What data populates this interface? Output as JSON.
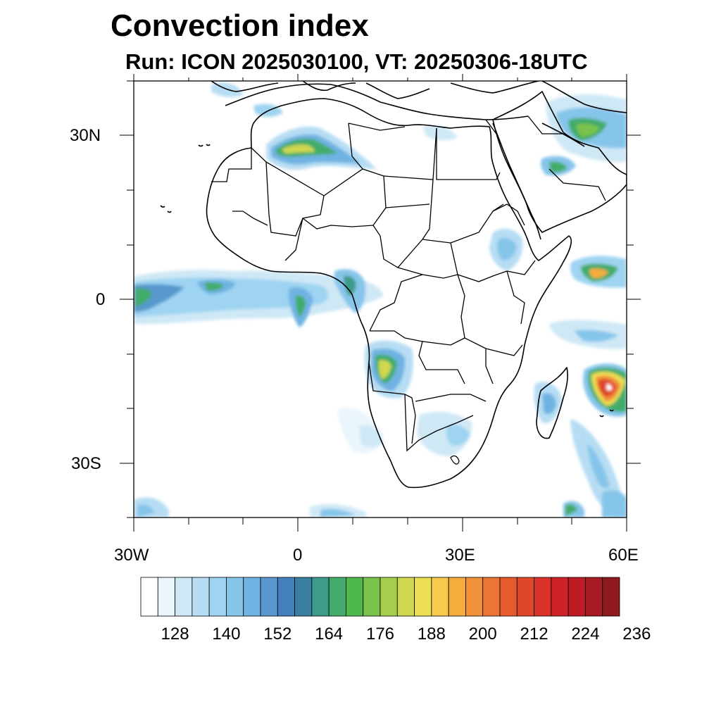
{
  "title": "Convection index",
  "subtitle": "Run: ICON 2025030100,  VT: 20250306-18UTC",
  "map": {
    "lon_range": [
      -30,
      60
    ],
    "lat_range": [
      -40,
      40
    ],
    "lat_labels": [
      "30N",
      "0",
      "30S"
    ],
    "lon_labels": [
      "30W",
      "0",
      "30E",
      "60E"
    ],
    "features": [
      {
        "name": "sahara-band",
        "lon": -4,
        "lat": 26,
        "max_value": 182
      },
      {
        "name": "equatorial-atlantic-band",
        "lon": -25,
        "lat": 1,
        "max_value": 170
      },
      {
        "name": "arabian-gulf-cluster",
        "lon": 52,
        "lat": 30,
        "max_value": 172
      },
      {
        "name": "angola-cluster",
        "lon": 14,
        "lat": -13,
        "max_value": 188
      },
      {
        "name": "mozambique-channel-cyclone",
        "lon": 58,
        "lat": -17,
        "max_value": 212
      },
      {
        "name": "horn-of-africa-cluster",
        "lon": 56,
        "lat": 5,
        "max_value": 200
      }
    ]
  },
  "colorbar": {
    "labels": [
      "128",
      "140",
      "152",
      "164",
      "176",
      "188",
      "200",
      "212",
      "224",
      "236"
    ],
    "colors": [
      "#ffffff",
      "#eaf5fc",
      "#cfe8f6",
      "#b6ddf3",
      "#9ed4f1",
      "#86c5ea",
      "#70b2e2",
      "#5898ce",
      "#447fbe",
      "#3b7fa0",
      "#3d9b8b",
      "#43ac6a",
      "#4eb84c",
      "#79c24b",
      "#a6ce4d",
      "#cfd84f",
      "#eddf53",
      "#f7c94c",
      "#f4ac3d",
      "#f1913a",
      "#ec7436",
      "#e55b2e",
      "#df4729",
      "#d8322a",
      "#cd2328",
      "#bd1c25",
      "#a61b22",
      "#8e1a1f"
    ]
  }
}
